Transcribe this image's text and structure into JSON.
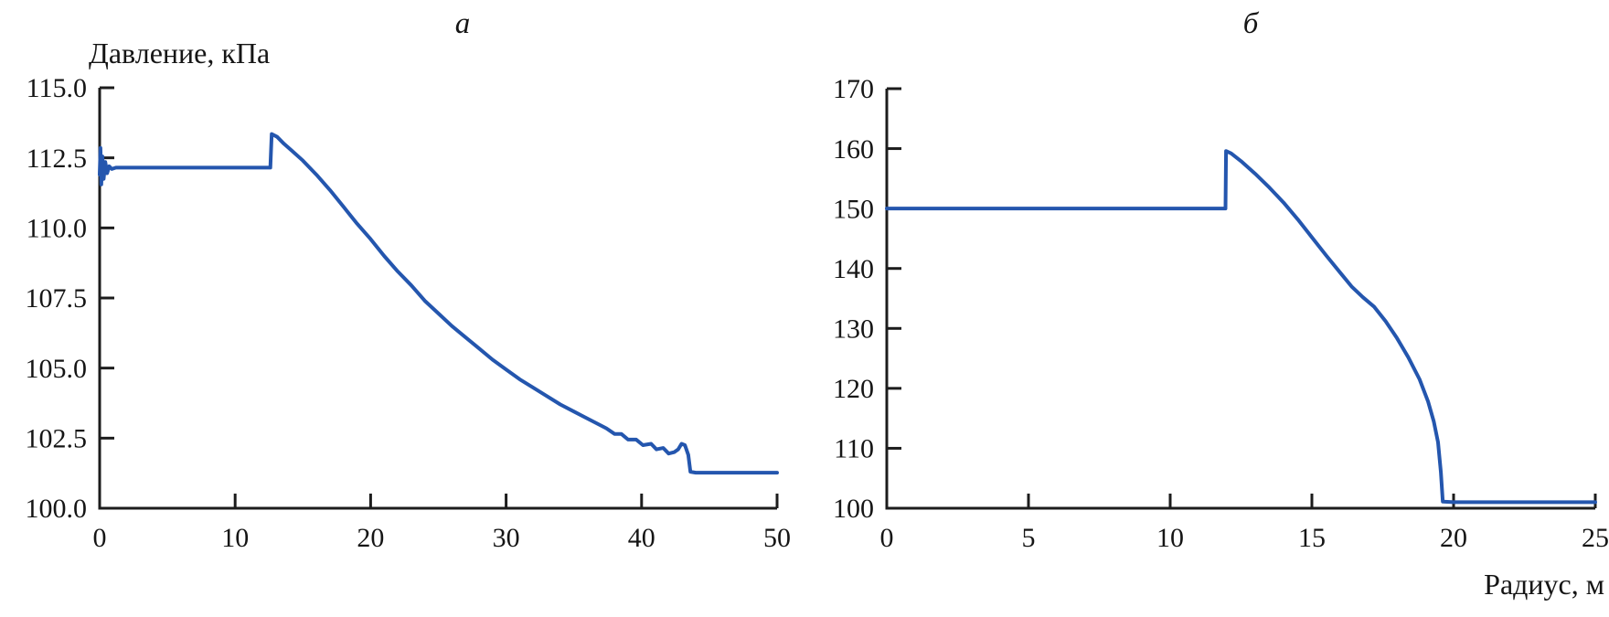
{
  "figure": {
    "background": "#ffffff",
    "axis_color": "#1c1c1c",
    "text_color": "#151515"
  },
  "chart_data": [
    {
      "type": "line",
      "panel_label": "а",
      "ylabel": "Давление, кПа",
      "xlabel": "",
      "xlim": [
        0,
        50
      ],
      "ylim": [
        100,
        115
      ],
      "grid": false,
      "legend": "none",
      "line_color": "#2456ae",
      "xticks": {
        "values": [
          0,
          10,
          20,
          30,
          40,
          50
        ],
        "labels": [
          "0",
          "10",
          "20",
          "30",
          "40",
          "50"
        ]
      },
      "yticks": {
        "values": [
          100.0,
          102.5,
          105.0,
          107.5,
          110.0,
          112.5,
          115.0
        ],
        "labels": [
          "100.0",
          "102.5",
          "105.0",
          "107.5",
          "110.0",
          "112.5",
          "115.0"
        ]
      },
      "series": [
        {
          "name": "pressure-vs-radius-a",
          "points": [
            [
              0,
              111.9
            ],
            [
              0.06,
              112.85
            ],
            [
              0.12,
              111.55
            ],
            [
              0.2,
              112.55
            ],
            [
              0.3,
              111.75
            ],
            [
              0.42,
              112.35
            ],
            [
              0.55,
              111.95
            ],
            [
              0.7,
              112.2
            ],
            [
              0.9,
              112.1
            ],
            [
              1.2,
              112.15
            ],
            [
              12.6,
              112.15
            ],
            [
              12.7,
              113.35
            ],
            [
              13.1,
              113.25
            ],
            [
              13.6,
              113.0
            ],
            [
              14.2,
              112.75
            ],
            [
              15,
              112.4
            ],
            [
              16,
              111.9
            ],
            [
              17,
              111.35
            ],
            [
              18,
              110.75
            ],
            [
              19,
              110.15
            ],
            [
              20,
              109.6
            ],
            [
              21,
              109.0
            ],
            [
              22,
              108.45
            ],
            [
              23,
              107.95
            ],
            [
              24,
              107.4
            ],
            [
              25,
              106.95
            ],
            [
              26,
              106.5
            ],
            [
              27,
              106.1
            ],
            [
              28,
              105.7
            ],
            [
              29,
              105.3
            ],
            [
              30,
              104.95
            ],
            [
              31,
              104.6
            ],
            [
              32,
              104.3
            ],
            [
              33,
              104.0
            ],
            [
              34,
              103.7
            ],
            [
              35,
              103.45
            ],
            [
              36,
              103.2
            ],
            [
              36.8,
              103.0
            ],
            [
              37.4,
              102.85
            ],
            [
              38,
              102.65
            ],
            [
              38.5,
              102.65
            ],
            [
              39,
              102.45
            ],
            [
              39.6,
              102.45
            ],
            [
              40.1,
              102.25
            ],
            [
              40.7,
              102.3
            ],
            [
              41.1,
              102.1
            ],
            [
              41.6,
              102.15
            ],
            [
              42,
              101.95
            ],
            [
              42.4,
              102.0
            ],
            [
              42.7,
              102.1
            ],
            [
              42.95,
              102.3
            ],
            [
              43.2,
              102.25
            ],
            [
              43.45,
              101.9
            ],
            [
              43.6,
              101.3
            ],
            [
              44,
              101.27
            ],
            [
              50,
              101.27
            ]
          ]
        }
      ]
    },
    {
      "type": "line",
      "panel_label": "б",
      "ylabel": "",
      "xlabel": "Радиус, м",
      "xlim": [
        0,
        25
      ],
      "ylim": [
        100,
        170
      ],
      "grid": false,
      "legend": "none",
      "line_color": "#2456ae",
      "xticks": {
        "values": [
          0,
          5,
          10,
          15,
          20,
          25
        ],
        "labels": [
          "0",
          "5",
          "10",
          "15",
          "20",
          "25"
        ]
      },
      "yticks": {
        "values": [
          100,
          110,
          120,
          130,
          140,
          150,
          160,
          170
        ],
        "labels": [
          "100",
          "110",
          "120",
          "130",
          "140",
          "150",
          "160",
          "170"
        ]
      },
      "series": [
        {
          "name": "pressure-vs-radius-b",
          "points": [
            [
              0,
              150
            ],
            [
              11.95,
              150
            ],
            [
              11.97,
              159.6
            ],
            [
              12.15,
              159.2
            ],
            [
              12.5,
              157.9
            ],
            [
              13,
              155.8
            ],
            [
              13.5,
              153.5
            ],
            [
              14,
              151.0
            ],
            [
              14.5,
              148.2
            ],
            [
              15,
              145.2
            ],
            [
              15.5,
              142.2
            ],
            [
              16,
              139.3
            ],
            [
              16.4,
              137.0
            ],
            [
              16.8,
              135.2
            ],
            [
              17.2,
              133.6
            ],
            [
              17.6,
              131.2
            ],
            [
              18,
              128.4
            ],
            [
              18.4,
              125.2
            ],
            [
              18.8,
              121.5
            ],
            [
              19.1,
              117.8
            ],
            [
              19.3,
              114.5
            ],
            [
              19.45,
              111.0
            ],
            [
              19.55,
              106.0
            ],
            [
              19.62,
              101.1
            ],
            [
              20,
              101.0
            ],
            [
              25,
              101.0
            ]
          ]
        }
      ]
    }
  ]
}
